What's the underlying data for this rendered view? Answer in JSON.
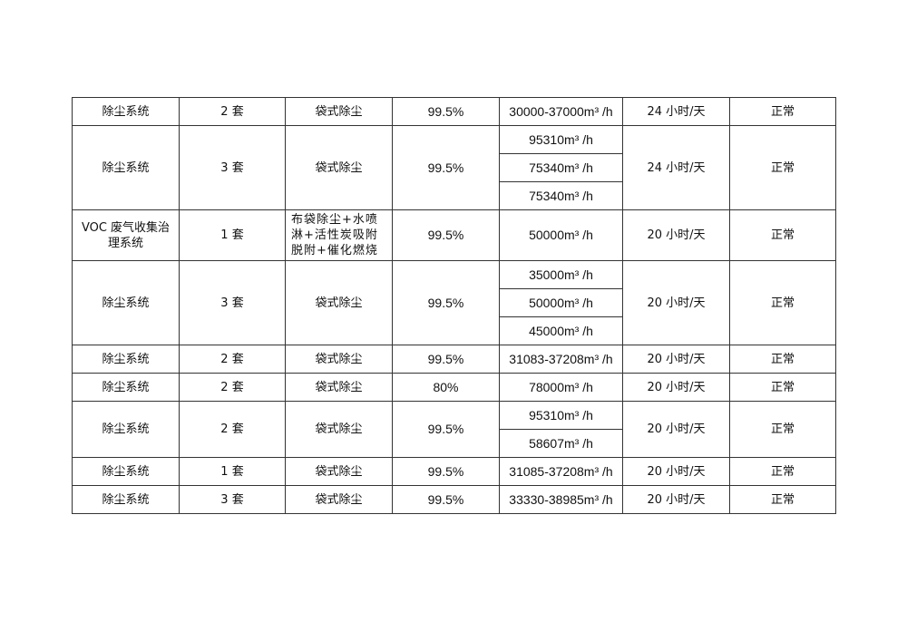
{
  "table": {
    "rows": [
      {
        "name": "除尘系统",
        "quantity": "2 套",
        "method": "袋式除尘",
        "efficiency": "99.5%",
        "flows": [
          "30000-37000m³ /h"
        ],
        "hours": "24 小时/天",
        "status": "正常"
      },
      {
        "name": "除尘系统",
        "quantity": "3 套",
        "method": "袋式除尘",
        "efficiency": "99.5%",
        "flows": [
          "95310m³ /h",
          "75340m³ /h",
          "75340m³ /h"
        ],
        "hours": "24 小时/天",
        "status": "正常"
      },
      {
        "name": "VOC 废气收集治理系统",
        "quantity": "1 套",
        "method": "布袋除尘+水喷淋+活性炭吸附脱附+催化燃烧",
        "efficiency": "99.5%",
        "flows": [
          "50000m³ /h"
        ],
        "hours": "20 小时/天",
        "status": "正常"
      },
      {
        "name": "除尘系统",
        "quantity": "3 套",
        "method": "袋式除尘",
        "efficiency": "99.5%",
        "flows": [
          "35000m³ /h",
          "50000m³ /h",
          "45000m³ /h"
        ],
        "hours": "20 小时/天",
        "status": "正常"
      },
      {
        "name": "除尘系统",
        "quantity": "2 套",
        "method": "袋式除尘",
        "efficiency": "99.5%",
        "flows": [
          "31083-37208m³ /h"
        ],
        "hours": "20 小时/天",
        "status": "正常"
      },
      {
        "name": "除尘系统",
        "quantity": "2 套",
        "method": "袋式除尘",
        "efficiency": "80%",
        "flows": [
          "78000m³ /h"
        ],
        "hours": "20 小时/天",
        "status": "正常"
      },
      {
        "name": "除尘系统",
        "quantity": "2 套",
        "method": "袋式除尘",
        "efficiency": "99.5%",
        "flows": [
          "95310m³ /h",
          "58607m³ /h"
        ],
        "hours": "20 小时/天",
        "status": "正常"
      },
      {
        "name": "除尘系统",
        "quantity": "1 套",
        "method": "袋式除尘",
        "efficiency": "99.5%",
        "flows": [
          "31085-37208m³ /h"
        ],
        "hours": "20 小时/天",
        "status": "正常"
      },
      {
        "name": "除尘系统",
        "quantity": "3 套",
        "method": "袋式除尘",
        "efficiency": "99.5%",
        "flows": [
          "33330-38985m³ /h"
        ],
        "hours": "20 小时/天",
        "status": "正常"
      }
    ]
  }
}
